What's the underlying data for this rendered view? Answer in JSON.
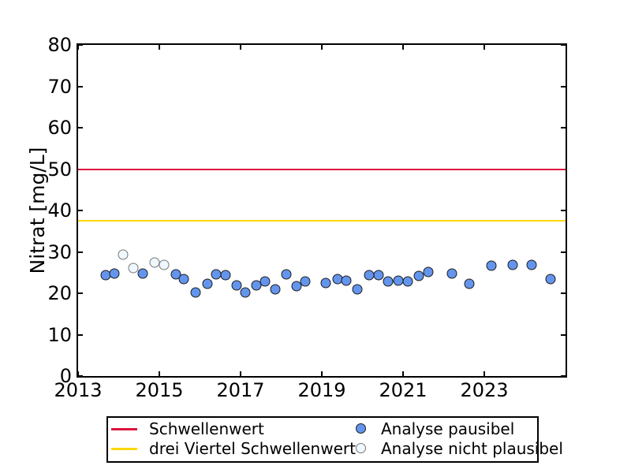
{
  "figure": {
    "background": "#ffffff"
  },
  "chart_data": {
    "type": "scatter",
    "title": "",
    "xlabel": "",
    "ylabel": "Nitrat [mg/L]",
    "xlim": [
      2013,
      2025
    ],
    "ylim": [
      0,
      80
    ],
    "xticks": [
      2013,
      2015,
      2017,
      2019,
      2021,
      2023
    ],
    "yticks": [
      0,
      10,
      20,
      30,
      40,
      50,
      60,
      70,
      80
    ],
    "grid": false,
    "legend_position": "below-center",
    "hlines": [
      {
        "label": "Schwellenwert",
        "value": 50,
        "color": "#dc143c"
      },
      {
        "label": "drei Viertel Schwellenwert",
        "value": 37.5,
        "color": "#ffd700"
      }
    ],
    "series": [
      {
        "name": "Analyse nicht plausibel",
        "marker": "circle-open",
        "fill": "#f0f8ff",
        "edge": "#777777",
        "points": [
          [
            2014.11,
            29.3
          ],
          [
            2014.36,
            26.1
          ],
          [
            2014.88,
            27.4
          ],
          [
            2015.12,
            26.9
          ]
        ]
      },
      {
        "name": "Analyse pausibel",
        "marker": "circle-filled",
        "fill": "#6495ed",
        "edge": "#1c1c1c",
        "points": [
          [
            2013.68,
            24.4
          ],
          [
            2013.89,
            24.8
          ],
          [
            2014.59,
            24.7
          ],
          [
            2015.41,
            24.5
          ],
          [
            2015.61,
            23.4
          ],
          [
            2015.89,
            20.1
          ],
          [
            2016.18,
            22.3
          ],
          [
            2016.4,
            24.5
          ],
          [
            2016.63,
            24.3
          ],
          [
            2016.9,
            22.0
          ],
          [
            2017.12,
            20.1
          ],
          [
            2017.38,
            22.0
          ],
          [
            2017.61,
            22.8
          ],
          [
            2017.86,
            20.9
          ],
          [
            2018.12,
            24.5
          ],
          [
            2018.38,
            21.7
          ],
          [
            2018.6,
            22.8
          ],
          [
            2019.1,
            22.4
          ],
          [
            2019.38,
            23.4
          ],
          [
            2019.61,
            23.0
          ],
          [
            2019.88,
            20.9
          ],
          [
            2020.16,
            24.4
          ],
          [
            2020.4,
            24.4
          ],
          [
            2020.63,
            22.8
          ],
          [
            2020.88,
            23.0
          ],
          [
            2021.12,
            22.8
          ],
          [
            2021.38,
            24.2
          ],
          [
            2021.63,
            25.1
          ],
          [
            2022.2,
            24.7
          ],
          [
            2022.63,
            22.2
          ],
          [
            2023.17,
            26.7
          ],
          [
            2023.69,
            26.9
          ],
          [
            2024.16,
            26.9
          ],
          [
            2024.64,
            23.5
          ]
        ]
      }
    ]
  }
}
